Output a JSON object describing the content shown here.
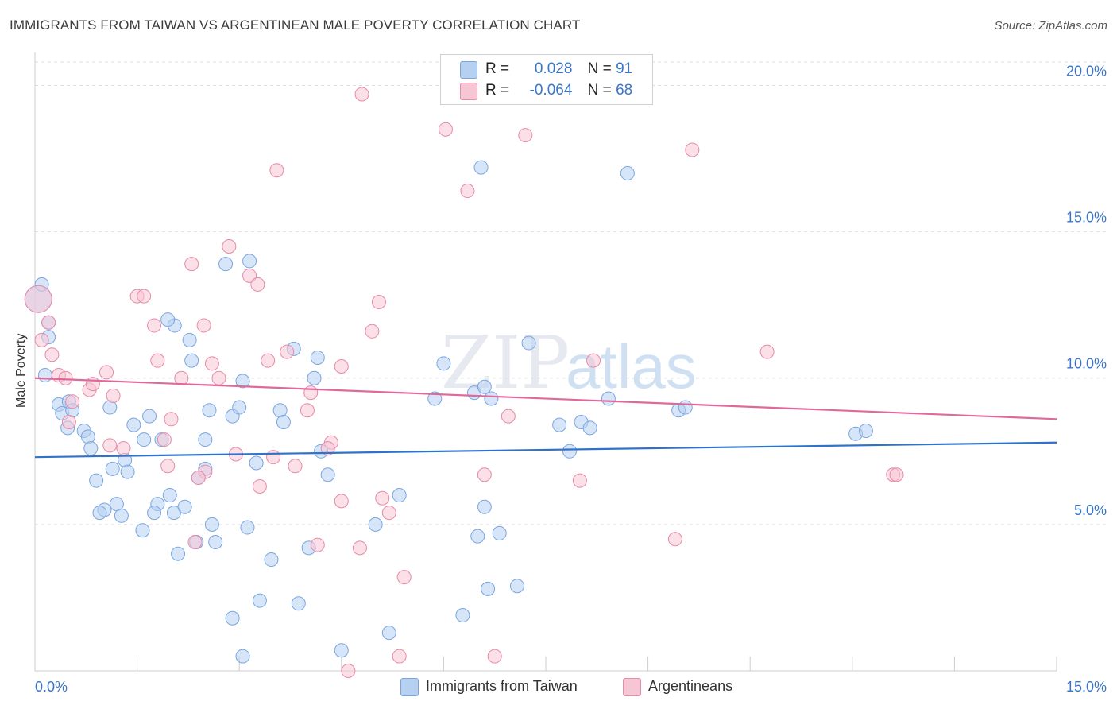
{
  "header": {
    "title": "IMMIGRANTS FROM TAIWAN VS ARGENTINEAN MALE POVERTY CORRELATION CHART",
    "source": "Source: ZipAtlas.com"
  },
  "legend": {
    "r_label": "R =",
    "n_label": "N =",
    "rows": [
      {
        "r": "0.028",
        "n": "91",
        "color": "#b6d0f2",
        "border": "#7aa6e0"
      },
      {
        "r": "-0.064",
        "n": "68",
        "color": "#f7c6d5",
        "border": "#e88aa8"
      }
    ]
  },
  "watermark": {
    "zip": "ZIP",
    "atlas": "atlas"
  },
  "chart_data": {
    "type": "scatter",
    "title": "IMMIGRANTS FROM TAIWAN VS ARGENTINEAN MALE POVERTY CORRELATION CHART",
    "xlabel": "",
    "ylabel": "Male Poverty",
    "xlim": [
      0,
      15
    ],
    "ylim": [
      0,
      20.8
    ],
    "x_tick_labels": [
      "0.0%",
      "15.0%"
    ],
    "y_tick_labels": [
      "5.0%",
      "10.0%",
      "15.0%",
      "20.0%"
    ],
    "y_ticks": [
      5,
      10,
      15,
      20
    ],
    "grid": true,
    "legend_position": "top-center",
    "series": [
      {
        "name": "Immigrants from Taiwan",
        "color": "#b6d0f2",
        "stroke": "#7aa6e0",
        "line_color": "#2f72c9",
        "trend": [
          [
            0,
            7.3
          ],
          [
            15,
            7.8
          ]
        ],
        "points": [
          [
            0.05,
            12.7
          ],
          [
            0.2,
            11.9
          ],
          [
            0.2,
            11.4
          ],
          [
            0.15,
            10.1
          ],
          [
            0.35,
            9.1
          ],
          [
            0.4,
            8.8
          ],
          [
            0.5,
            9.2
          ],
          [
            0.55,
            8.9
          ],
          [
            0.48,
            8.3
          ],
          [
            0.72,
            8.2
          ],
          [
            0.78,
            8.0
          ],
          [
            0.82,
            7.6
          ],
          [
            1.1,
            9.0
          ],
          [
            1.45,
            8.4
          ],
          [
            1.6,
            7.9
          ],
          [
            1.68,
            8.7
          ],
          [
            1.86,
            7.9
          ],
          [
            2.05,
            11.8
          ],
          [
            2.27,
            11.3
          ],
          [
            2.3,
            10.6
          ],
          [
            1.32,
            7.2
          ],
          [
            1.14,
            6.9
          ],
          [
            1.36,
            6.8
          ],
          [
            0.9,
            6.5
          ],
          [
            1.2,
            5.7
          ],
          [
            1.02,
            5.5
          ],
          [
            0.95,
            5.4
          ],
          [
            1.27,
            5.3
          ],
          [
            1.8,
            5.7
          ],
          [
            1.75,
            5.4
          ],
          [
            1.98,
            6.0
          ],
          [
            2.04,
            5.4
          ],
          [
            2.2,
            5.6
          ],
          [
            1.58,
            4.8
          ],
          [
            2.1,
            4.0
          ],
          [
            2.5,
            7.9
          ],
          [
            2.56,
            8.9
          ],
          [
            2.5,
            6.9
          ],
          [
            2.4,
            6.6
          ],
          [
            2.37,
            4.4
          ],
          [
            2.6,
            5.0
          ],
          [
            2.65,
            4.4
          ],
          [
            2.9,
            8.7
          ],
          [
            3.0,
            9.0
          ],
          [
            3.15,
            14.0
          ],
          [
            2.8,
            13.9
          ],
          [
            3.05,
            9.9
          ],
          [
            3.25,
            7.1
          ],
          [
            3.12,
            4.9
          ],
          [
            3.47,
            3.8
          ],
          [
            3.3,
            2.4
          ],
          [
            2.9,
            1.8
          ],
          [
            3.05,
            0.5
          ],
          [
            3.6,
            8.9
          ],
          [
            3.65,
            8.5
          ],
          [
            3.87,
            2.3
          ],
          [
            4.02,
            4.2
          ],
          [
            4.15,
            10.7
          ],
          [
            4.1,
            10.0
          ],
          [
            4.2,
            7.5
          ],
          [
            4.3,
            6.7
          ],
          [
            4.5,
            0.7
          ],
          [
            5.0,
            5.0
          ],
          [
            5.2,
            1.3
          ],
          [
            5.35,
            6.0
          ],
          [
            5.87,
            9.3
          ],
          [
            6.28,
            1.9
          ],
          [
            6.45,
            9.5
          ],
          [
            6.6,
            9.7
          ],
          [
            6.7,
            9.3
          ],
          [
            6.55,
            17.2
          ],
          [
            6.5,
            4.6
          ],
          [
            6.65,
            2.8
          ],
          [
            6.6,
            5.6
          ],
          [
            6.82,
            4.7
          ],
          [
            7.08,
            2.9
          ],
          [
            7.25,
            11.2
          ],
          [
            7.7,
            8.4
          ],
          [
            7.85,
            7.5
          ],
          [
            8.02,
            8.5
          ],
          [
            8.15,
            8.3
          ],
          [
            8.42,
            9.3
          ],
          [
            8.7,
            17.0
          ],
          [
            9.45,
            8.9
          ],
          [
            9.55,
            9.0
          ],
          [
            12.05,
            8.1
          ],
          [
            12.2,
            8.2
          ],
          [
            0.1,
            13.2
          ],
          [
            1.95,
            12.0
          ],
          [
            3.8,
            11.0
          ],
          [
            6.0,
            10.5
          ]
        ]
      },
      {
        "name": "Argentineans",
        "color": "#f7c6d5",
        "stroke": "#e88aa8",
        "line_color": "#e0699a",
        "trend": [
          [
            0,
            10.0
          ],
          [
            15,
            8.6
          ]
        ],
        "points": [
          [
            0.05,
            12.7
          ],
          [
            0.2,
            11.9
          ],
          [
            0.1,
            11.3
          ],
          [
            0.35,
            10.1
          ],
          [
            0.45,
            10.0
          ],
          [
            0.55,
            9.2
          ],
          [
            0.5,
            8.5
          ],
          [
            0.8,
            9.6
          ],
          [
            1.05,
            10.2
          ],
          [
            0.85,
            9.8
          ],
          [
            1.15,
            9.4
          ],
          [
            1.3,
            7.6
          ],
          [
            1.1,
            7.7
          ],
          [
            1.5,
            12.8
          ],
          [
            1.6,
            12.8
          ],
          [
            1.75,
            11.8
          ],
          [
            1.8,
            10.6
          ],
          [
            1.95,
            7.0
          ],
          [
            2.0,
            8.6
          ],
          [
            2.15,
            10.0
          ],
          [
            2.3,
            13.9
          ],
          [
            2.48,
            11.8
          ],
          [
            2.6,
            10.5
          ],
          [
            2.7,
            10.0
          ],
          [
            2.85,
            14.5
          ],
          [
            2.95,
            7.4
          ],
          [
            3.15,
            13.5
          ],
          [
            3.27,
            13.2
          ],
          [
            3.55,
            17.1
          ],
          [
            3.3,
            6.3
          ],
          [
            3.42,
            10.6
          ],
          [
            3.7,
            10.9
          ],
          [
            3.82,
            7.0
          ],
          [
            4.0,
            8.9
          ],
          [
            4.05,
            9.5
          ],
          [
            4.15,
            4.3
          ],
          [
            4.5,
            10.4
          ],
          [
            4.35,
            7.8
          ],
          [
            4.5,
            5.8
          ],
          [
            4.77,
            4.2
          ],
          [
            4.95,
            11.6
          ],
          [
            5.05,
            12.6
          ],
          [
            5.2,
            5.4
          ],
          [
            5.35,
            0.5
          ],
          [
            5.42,
            3.2
          ],
          [
            6.03,
            18.5
          ],
          [
            6.35,
            16.4
          ],
          [
            6.6,
            6.7
          ],
          [
            6.75,
            0.5
          ],
          [
            6.95,
            8.7
          ],
          [
            7.2,
            18.3
          ],
          [
            8.0,
            6.5
          ],
          [
            8.2,
            10.6
          ],
          [
            9.4,
            4.5
          ],
          [
            9.65,
            17.8
          ],
          [
            10.75,
            10.9
          ],
          [
            12.6,
            6.7
          ],
          [
            12.65,
            6.7
          ],
          [
            3.5,
            7.3
          ],
          [
            4.6,
            0.0
          ],
          [
            1.9,
            7.9
          ],
          [
            2.5,
            6.8
          ],
          [
            0.25,
            10.8
          ],
          [
            2.4,
            6.6
          ],
          [
            2.35,
            4.4
          ],
          [
            4.3,
            7.6
          ],
          [
            5.1,
            5.9
          ],
          [
            4.8,
            19.7
          ]
        ]
      }
    ]
  },
  "bottom_legend": [
    {
      "label": "Immigrants from Taiwan",
      "color": "#b6d0f2",
      "border": "#7aa6e0"
    },
    {
      "label": "Argentineans",
      "color": "#f7c6d5",
      "border": "#e88aa8"
    }
  ]
}
